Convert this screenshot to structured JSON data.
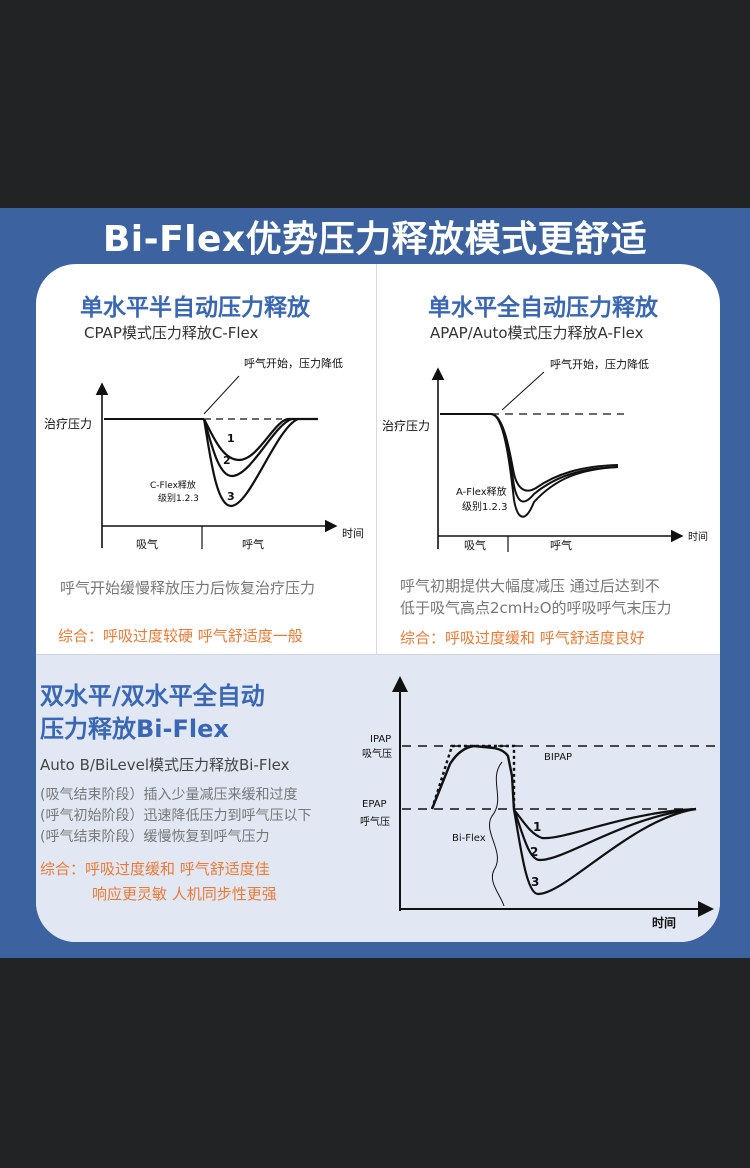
{
  "title": "Bi-Flex优势压力释放模式更舒适",
  "cflex": {
    "heading": "单水平半自动压力释放",
    "subheading": "CPAP模式压力释放C-Flex",
    "annotation": "呼气开始，压力降低",
    "y_label": "治疗压力",
    "x_label": "时间",
    "phase_inhale": "吸气",
    "phase_exhale": "呼气",
    "curve_label_line1": "C-Flex释放",
    "curve_label_line2": "级别1.2.3",
    "levels": [
      "1",
      "2",
      "3"
    ],
    "description": "呼气开始缓慢释放压力后恢复治疗压力",
    "summary": "综合：呼吸过度较硬 呼气舒适度一般"
  },
  "aflex": {
    "heading": "单水平全自动压力释放",
    "subheading": "APAP/Auto模式压力释放A-Flex",
    "annotation": "呼气开始，压力降低",
    "y_label": "治疗压力",
    "x_label": "时间",
    "phase_inhale": "吸气",
    "phase_exhale": "呼气",
    "curve_label_line1": "A-Flex释放",
    "curve_label_line2": "级别1.2.3",
    "description_line1": "呼气初期提供大幅度减压 通过后达到不",
    "description_line2": "低于吸气高点2cmH₂O的呼吸呼气末压力",
    "summary": "综合：呼吸过度缓和 呼气舒适度良好"
  },
  "biflex": {
    "heading_line1": "双水平/双水平全自动",
    "heading_line2": "压力释放Bi-Flex",
    "subheading": "Auto B/BiLevel模式压力释放Bi-Flex",
    "stage1": "(吸气结束阶段）插入少量减压来缓和过度",
    "stage2": "(呼气初始阶段）迅速降低压力到呼气压以下",
    "stage3": "(呼气结束阶段）缓慢恢复到呼气压力",
    "summary_line1": "综合：呼吸过度缓和  呼气舒适度佳",
    "summary_line2": "响应更灵敏  人机同步性更强",
    "ipap": "IPAP",
    "ipap_cn": "吸气压",
    "epap": "EPAP",
    "epap_cn": "呼气压",
    "bipap": "BIPAP",
    "curve_label": "Bi-Flex",
    "levels": [
      "1",
      "2",
      "3"
    ],
    "x_label": "时间"
  }
}
